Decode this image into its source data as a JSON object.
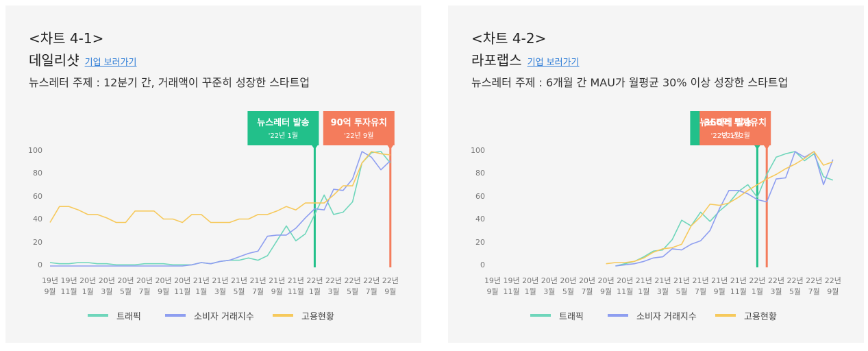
{
  "chart_data": [
    {
      "type": "line",
      "label": "<차트 4-1>",
      "title": "데일리샷",
      "link": "기업 보러가기",
      "subtitle": "뉴스레터 주제 : 12분기 간, 거래액이 꾸준히 성장한 스타트업",
      "categories": [
        "19년 9월",
        null,
        "19년 11월",
        null,
        "20년 1월",
        null,
        "20년 3월",
        null,
        "20년 5월",
        null,
        "20년 7월",
        null,
        "20년 9월",
        null,
        "20년 11월",
        null,
        "21년 1월",
        null,
        "21년 3월",
        null,
        "21년 5월",
        null,
        "21년 7월",
        null,
        "21년 9월",
        null,
        "21년 11월",
        null,
        "22년 1월",
        null,
        "22년 3월",
        null,
        "22년 5월",
        null,
        "22년 7월",
        null,
        "22년 9월"
      ],
      "series": [
        {
          "name": "트래픽",
          "color": "#6fd6bb",
          "values": [
            3,
            2,
            2,
            3,
            3,
            2,
            2,
            1,
            1,
            1,
            2,
            2,
            2,
            1,
            1,
            1,
            3,
            2,
            4,
            5,
            5,
            7,
            5,
            9,
            22,
            35,
            22,
            28,
            45,
            62,
            45,
            47,
            56,
            90,
            99,
            100,
            90
          ]
        },
        {
          "name": "소비자 거래지수",
          "color": "#8e9ef0",
          "values": [
            0,
            0,
            0,
            0,
            0,
            0,
            0,
            0,
            0,
            0,
            0,
            0,
            0,
            0,
            0,
            1,
            3,
            2,
            4,
            5,
            8,
            11,
            13,
            26,
            27,
            27,
            33,
            42,
            50,
            49,
            67,
            66,
            76,
            100,
            95,
            84,
            92
          ]
        },
        {
          "name": "고용현황",
          "color": "#f6c95c",
          "values": [
            38,
            52,
            52,
            49,
            45,
            45,
            42,
            38,
            38,
            48,
            48,
            48,
            41,
            41,
            38,
            45,
            45,
            38,
            38,
            38,
            41,
            41,
            45,
            45,
            48,
            52,
            49,
            55,
            55,
            55,
            62,
            70,
            70,
            90,
            100,
            98,
            97
          ]
        }
      ],
      "ylim": [
        0,
        100
      ],
      "yticks": [
        0,
        20,
        40,
        60,
        80,
        100
      ],
      "annotations": [
        {
          "text": "뉴스레터 발송",
          "date": "'22년 1월",
          "color": "#22c08a"
        },
        {
          "text": "90억 투자유치",
          "date": "'22년 9월",
          "color": "#f47c5c"
        }
      ]
    },
    {
      "type": "line",
      "label": "<차트 4-2>",
      "title": "라포랩스",
      "link": "기업 보러가기",
      "subtitle": "뉴스레터 주제 : 6개월 간 MAU가 월평균 30% 이상 성장한 스타트업",
      "categories": [
        "19년 9월",
        null,
        "19년 11월",
        null,
        "20년 1월",
        null,
        "20년 3월",
        null,
        "20년 5월",
        null,
        "20년 7월",
        null,
        "20년 9월",
        null,
        "20년 11월",
        null,
        "21년 1월",
        null,
        "21년 3월",
        null,
        "21년 5월",
        null,
        "21년 7월",
        null,
        "21년 9월",
        null,
        "21년 11월",
        null,
        "22년 1월",
        null,
        "22년 3월",
        null,
        "22년 5월",
        null,
        "22년 7월",
        null,
        "22년 9월"
      ],
      "series": [
        {
          "name": "트래픽",
          "color": "#6fd6bb",
          "values": [
            null,
            null,
            null,
            null,
            null,
            null,
            null,
            null,
            null,
            null,
            null,
            null,
            null,
            0,
            2,
            4,
            8,
            13,
            14,
            23,
            40,
            35,
            47,
            39,
            48,
            55,
            65,
            71,
            60,
            80,
            95,
            98,
            100,
            92,
            98,
            78,
            75
          ]
        },
        {
          "name": "소비자 거래지수",
          "color": "#8e9ef0",
          "values": [
            null,
            null,
            null,
            null,
            null,
            null,
            null,
            null,
            null,
            null,
            null,
            null,
            null,
            0,
            1,
            2,
            4,
            7,
            8,
            15,
            14,
            19,
            22,
            31,
            50,
            66,
            66,
            63,
            58,
            56,
            76,
            77,
            100,
            95,
            100,
            71,
            93
          ]
        },
        {
          "name": "고용현황",
          "color": "#f6c95c",
          "values": [
            null,
            null,
            null,
            null,
            null,
            null,
            null,
            null,
            null,
            null,
            null,
            null,
            2,
            3,
            3,
            4,
            7,
            12,
            15,
            16,
            19,
            35,
            43,
            54,
            53,
            55,
            60,
            66,
            71,
            76,
            80,
            85,
            89,
            94,
            100,
            88,
            91
          ]
        }
      ],
      "ylim": [
        0,
        100
      ],
      "yticks": [
        0,
        20,
        40,
        60,
        80,
        100
      ],
      "annotations": [
        {
          "text": "뉴스레터 발송",
          "date": "'22년 1월",
          "color": "#22c08a"
        },
        {
          "text": "360억 투자유치",
          "date": "'22년 2월",
          "color": "#f47c5c"
        }
      ]
    }
  ]
}
